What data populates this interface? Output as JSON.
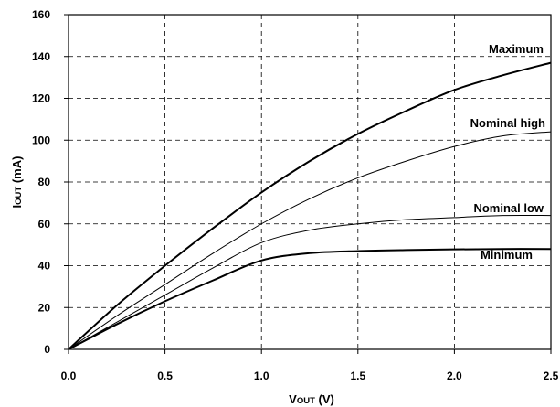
{
  "chart_data": {
    "type": "line",
    "xlabel": {
      "main": "V",
      "sub": "OUT",
      "unit": " (V)"
    },
    "ylabel": {
      "main": "I",
      "sub": "OUT",
      "unit": " (mA)"
    },
    "xlim": [
      0,
      2.5
    ],
    "ylim": [
      0,
      160
    ],
    "xticks": [
      "0.0",
      "0.5",
      "1.0",
      "1.5",
      "2.0",
      "2.5"
    ],
    "yticks": [
      "0",
      "20",
      "40",
      "60",
      "80",
      "100",
      "120",
      "140",
      "160"
    ],
    "grid": true,
    "series": [
      {
        "name": "Maximum",
        "weight": "thick",
        "x": [
          0,
          0.25,
          0.5,
          0.75,
          1.0,
          1.25,
          1.5,
          1.75,
          2.0,
          2.25,
          2.5
        ],
        "y": [
          0,
          21,
          40,
          58,
          75,
          90,
          103,
          114,
          124,
          131,
          137
        ]
      },
      {
        "name": "Nominal high",
        "weight": "thin",
        "x": [
          0,
          0.25,
          0.5,
          0.75,
          1.0,
          1.25,
          1.5,
          1.75,
          2.0,
          2.25,
          2.5
        ],
        "y": [
          0,
          16,
          31,
          46,
          60,
          72,
          82,
          90,
          97,
          102,
          104
        ]
      },
      {
        "name": "Nominal low",
        "weight": "thin",
        "x": [
          0,
          0.25,
          0.5,
          0.75,
          1.0,
          1.25,
          1.5,
          1.75,
          2.0,
          2.25,
          2.5
        ],
        "y": [
          0,
          13,
          26,
          39,
          51,
          57,
          60,
          62,
          63,
          64,
          64
        ]
      },
      {
        "name": "Minimum",
        "weight": "thick",
        "x": [
          0,
          0.25,
          0.5,
          0.75,
          1.0,
          1.25,
          1.5,
          1.75,
          2.0,
          2.25,
          2.5
        ],
        "y": [
          0,
          12,
          23,
          33,
          42.5,
          46,
          47,
          47.5,
          47.8,
          48,
          48
        ]
      }
    ]
  }
}
